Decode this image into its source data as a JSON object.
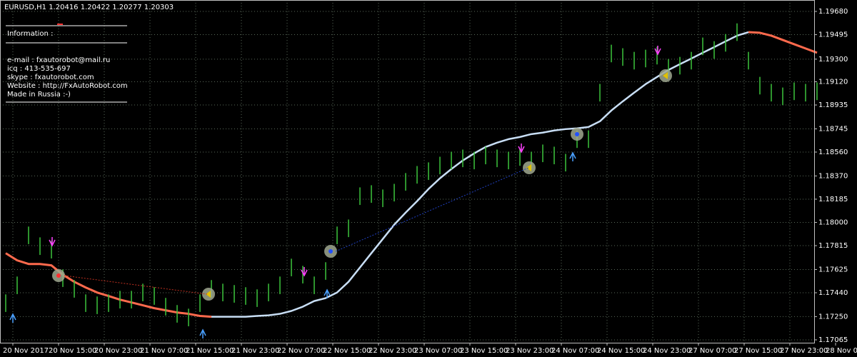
{
  "chart_data": {
    "type": "ohlc",
    "title": "EURUSD,H1  1.20416 1.20422 1.20277 1.20303",
    "info": {
      "heading": "Information :",
      "lines": [
        "e-mail : fxautorobot@mail.ru",
        "icq : 413-535-697",
        "skype : fxautorobot.com",
        "Website : http://FxAutoRobot.com",
        "Made in Russia :-)"
      ]
    },
    "bar_color": "#3cc43c",
    "highs": [
      1.17427,
      1.17569,
      1.17967,
      1.17881,
      1.17853,
      1.17626,
      1.17541,
      1.17427,
      1.1741,
      1.17427,
      1.17455,
      1.17455,
      1.17512,
      1.17484,
      1.17399,
      1.17342,
      1.17313,
      1.17427,
      1.17541,
      1.17512,
      1.17501,
      1.17484,
      1.17467,
      1.17512,
      1.17569,
      1.17711,
      1.17654,
      1.17569,
      1.17683,
      1.17967,
      1.18023,
      1.18279,
      1.18296,
      1.18262,
      1.18307,
      1.18393,
      1.18449,
      1.18478,
      1.18523,
      1.18563,
      1.1858,
      1.18563,
      1.18603,
      1.1858,
      1.18563,
      1.18591,
      1.18563,
      1.1862,
      1.18603,
      1.18546,
      1.18733,
      1.18733,
      1.19103,
      1.19415,
      1.19387,
      1.19358,
      1.19375,
      1.19398,
      1.19301,
      1.19318,
      1.19358,
      1.19472,
      1.19443,
      1.195,
      1.19585,
      1.19358,
      1.19159,
      1.19103,
      1.19074,
      1.19114,
      1.19103,
      1.19114
    ],
    "lows": [
      1.17287,
      1.17429,
      1.17827,
      1.17741,
      1.17713,
      1.17486,
      1.17401,
      1.17287,
      1.1727,
      1.17287,
      1.17315,
      1.17315,
      1.17372,
      1.17344,
      1.17259,
      1.17202,
      1.17173,
      1.17287,
      1.17401,
      1.17372,
      1.17361,
      1.17344,
      1.17327,
      1.17372,
      1.17429,
      1.17571,
      1.17514,
      1.17429,
      1.17543,
      1.17827,
      1.17883,
      1.18139,
      1.18156,
      1.18122,
      1.18167,
      1.18253,
      1.18309,
      1.18338,
      1.18383,
      1.18423,
      1.1844,
      1.18423,
      1.18463,
      1.1844,
      1.18423,
      1.18451,
      1.18423,
      1.1848,
      1.18463,
      1.18406,
      1.18593,
      1.18593,
      1.18963,
      1.19275,
      1.19247,
      1.19218,
      1.19235,
      1.19258,
      1.19161,
      1.19178,
      1.19218,
      1.19332,
      1.19303,
      1.1936,
      1.19445,
      1.19218,
      1.19019,
      1.18963,
      1.18934,
      1.18974,
      1.18963,
      1.18974
    ],
    "lines": [
      {
        "color": "#ff6a4d",
        "width": 3,
        "values": [
          1.17755,
          1.17698,
          1.17669,
          1.17669,
          1.17658,
          1.17584,
          1.17527,
          1.17482,
          1.17442,
          1.17414,
          1.17385,
          1.17363,
          1.1734,
          1.17317,
          1.173,
          1.17283,
          1.17272,
          1.17255,
          1.17249,
          null,
          null,
          null,
          null,
          null,
          null,
          null,
          null,
          null,
          null,
          null,
          null,
          null,
          null,
          null,
          null,
          null,
          null,
          null,
          null,
          null,
          null,
          null,
          null,
          null,
          null,
          null,
          null,
          null,
          null,
          null,
          null,
          null,
          null,
          null,
          null,
          null,
          null,
          null,
          null,
          null,
          null,
          null,
          null,
          null,
          null,
          1.19515,
          1.1951,
          1.19487,
          1.19453,
          1.19419,
          1.19385,
          1.19351
        ]
      },
      {
        "color": "#c8def5",
        "width": 2.5,
        "values": [
          null,
          null,
          null,
          null,
          null,
          null,
          null,
          null,
          null,
          null,
          null,
          null,
          null,
          null,
          null,
          null,
          null,
          null,
          1.17249,
          1.17249,
          1.17249,
          1.17249,
          1.17255,
          1.1726,
          1.17272,
          1.17295,
          1.17329,
          1.17374,
          1.17397,
          1.17442,
          1.17527,
          1.17641,
          1.17755,
          1.17868,
          1.17982,
          1.18078,
          1.18169,
          1.18266,
          1.18351,
          1.18425,
          1.18493,
          1.1855,
          1.18601,
          1.18635,
          1.18663,
          1.1868,
          1.18703,
          1.18715,
          1.18732,
          1.18743,
          1.18749,
          1.1876,
          1.18805,
          1.18891,
          1.18964,
          1.19033,
          1.19101,
          1.19158,
          1.19214,
          1.1926,
          1.19305,
          1.19351,
          1.19396,
          1.19442,
          1.19487,
          1.19515,
          null,
          null,
          null,
          null,
          null,
          null
        ]
      }
    ],
    "x_labels": [
      "20 Nov 2017",
      "20 Nov 15:00",
      "20 Nov 23:00",
      "21 Nov 07:00",
      "21 Nov 15:00",
      "21 Nov 23:00",
      "22 Nov 07:00",
      "22 Nov 15:00",
      "22 Nov 23:00",
      "23 Nov 07:00",
      "23 Nov 15:00",
      "23 Nov 23:00",
      "24 Nov 07:00",
      "24 Nov 15:00",
      "24 Nov 23:00",
      "27 Nov 07:00",
      "27 Nov 15:00",
      "27 Nov 23:00",
      "28 Nov 07"
    ],
    "ylim": [
      1.17042,
      1.19771
    ],
    "yticks": [
      {
        "value": 1.1968,
        "label": "1.19680"
      },
      {
        "value": 1.19495,
        "label": "1.19495"
      },
      {
        "value": 1.193,
        "label": "1.19300"
      },
      {
        "value": 1.1912,
        "label": "1.19120"
      },
      {
        "value": 1.18935,
        "label": "1.18935"
      },
      {
        "value": 1.18745,
        "label": "1.18745"
      },
      {
        "value": 1.1856,
        "label": "1.18560"
      },
      {
        "value": 1.1837,
        "label": "1.18370"
      },
      {
        "value": 1.18185,
        "label": "1.18185"
      },
      {
        "value": 1.18,
        "label": "1.18000"
      },
      {
        "value": 1.17815,
        "label": "1.17815"
      },
      {
        "value": 1.17625,
        "label": "1.17625"
      },
      {
        "value": 1.1744,
        "label": "1.17440"
      },
      {
        "value": 1.1725,
        "label": "1.17250"
      },
      {
        "value": 1.17065,
        "label": "1.17065"
      }
    ],
    "grid": true
  }
}
